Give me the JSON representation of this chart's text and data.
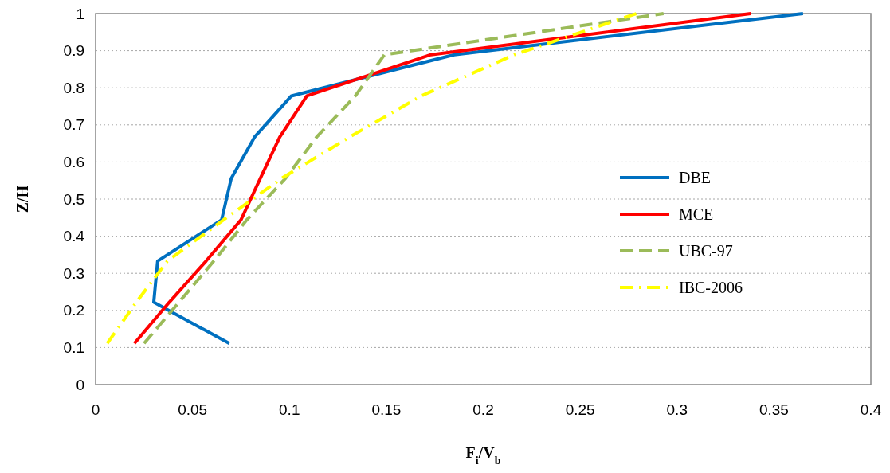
{
  "chart_data": {
    "type": "line",
    "xlabel": "F$_{i}$/V$_{b}$",
    "ylabel": "Z/H",
    "xlim": [
      0,
      0.4
    ],
    "xticks": [
      0,
      0.05,
      0.1,
      0.15,
      0.2,
      0.25,
      0.3,
      0.35,
      0.4
    ],
    "ylim": [
      0,
      1
    ],
    "yticks": [
      0,
      0.1,
      0.2,
      0.3,
      0.4,
      0.5,
      0.6,
      0.7,
      0.8,
      0.9,
      1
    ],
    "grid": "y",
    "legend": "right",
    "marker": "none",
    "series": [
      {
        "name": "DBE",
        "color": "#0070c0",
        "line_style": "solid",
        "x": [
          0.069,
          0.03,
          0.032,
          0.065,
          0.07,
          0.082,
          0.101,
          0.185,
          0.365
        ],
        "values": [
          0.111,
          0.222,
          0.333,
          0.444,
          0.556,
          0.667,
          0.778,
          0.889,
          1
        ]
      },
      {
        "name": "MCE",
        "color": "#ff0000",
        "line_style": "solid",
        "x": [
          0.02,
          0.038,
          0.057,
          0.075,
          0.085,
          0.095,
          0.109,
          0.173,
          0.338
        ],
        "values": [
          0.111,
          0.222,
          0.333,
          0.444,
          0.556,
          0.667,
          0.778,
          0.889,
          1
        ]
      },
      {
        "name": "UBC-97",
        "color": "#9bbb59",
        "line_style": "dashed",
        "x": [
          0.025,
          0.043,
          0.061,
          0.078,
          0.098,
          0.114,
          0.134,
          0.149,
          0.293
        ],
        "values": [
          0.111,
          0.222,
          0.333,
          0.444,
          0.556,
          0.667,
          0.778,
          0.889,
          1
        ]
      },
      {
        "name": "IBC-2006",
        "color": "#ffff00",
        "line_style": "dashdot",
        "x": [
          0.006,
          0.021,
          0.037,
          0.066,
          0.096,
          0.131,
          0.168,
          0.216,
          0.279
        ],
        "values": [
          0.111,
          0.222,
          0.333,
          0.444,
          0.556,
          0.667,
          0.778,
          0.889,
          1
        ]
      }
    ]
  }
}
